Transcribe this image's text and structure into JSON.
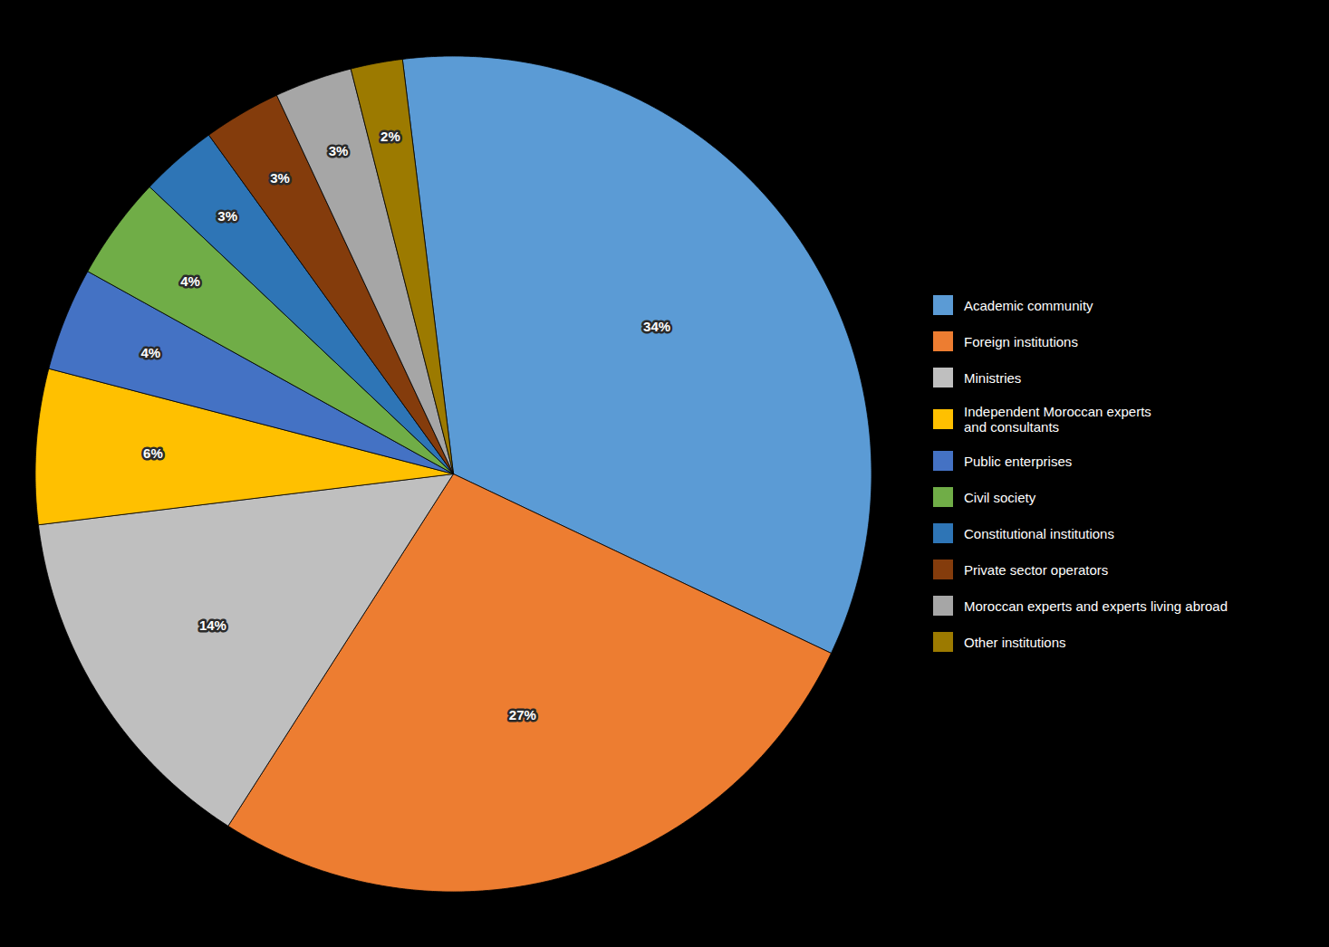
{
  "chart_data": {
    "type": "pie",
    "categories": [
      "Academic community",
      "Foreign institutions",
      "Ministries",
      "Independent Moroccan experts\nand consultants",
      "Public enterprises",
      "Civil society",
      "Constitutional institutions",
      "Private sector operators",
      "Moroccan experts and experts living abroad",
      "Other institutions"
    ],
    "values": [
      34,
      27,
      14,
      6,
      4,
      4,
      3,
      3,
      3,
      2
    ],
    "value_labels": [
      "34%",
      "27%",
      "14%",
      "6%",
      "4%",
      "4%",
      "3%",
      "3%",
      "3%",
      "2%"
    ],
    "colors": [
      "#5B9BD5",
      "#ED7D31",
      "#BFBFBF",
      "#FFC000",
      "#4472C4",
      "#70AD47",
      "#2E75B6",
      "#843C0C",
      "#A6A6A6",
      "#9C7A00"
    ],
    "data_labels": true,
    "legend": "right"
  }
}
